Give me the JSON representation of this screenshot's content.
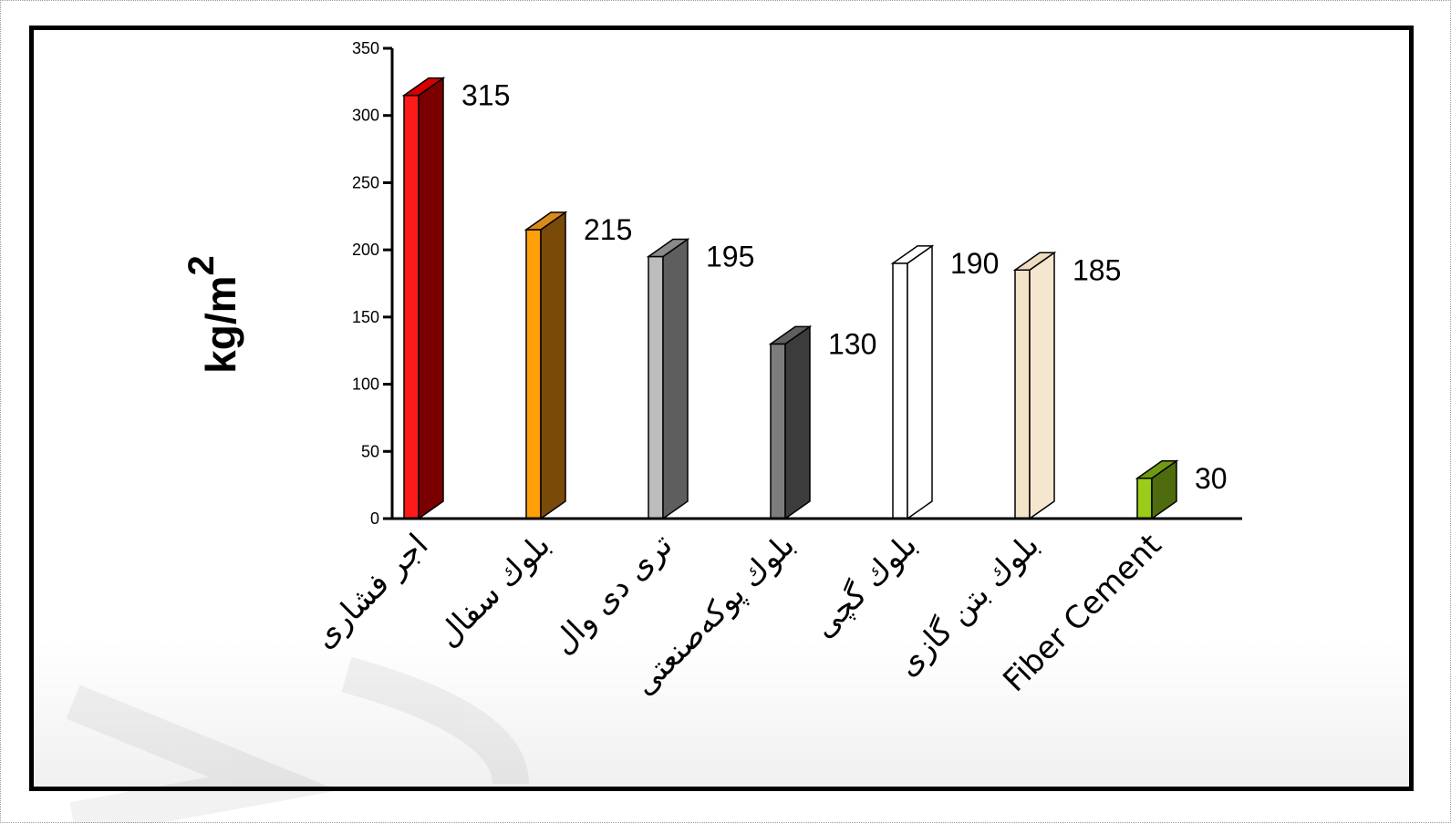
{
  "chart_data": {
    "type": "bar",
    "categories": [
      "اجر فشاری",
      "بلوك سفال",
      "تری دی وال",
      "بلوك پوکەصنعتی",
      "بلوك گچی",
      "بلوك بتن گازی",
      "Fiber Cement"
    ],
    "values": [
      315,
      215,
      195,
      130,
      190,
      185,
      30
    ],
    "data_labels": [
      "315",
      "215",
      "195",
      "130",
      "190",
      "185",
      "30"
    ],
    "ylabel": "kg/m",
    "ylabel_superscript": "2",
    "ylim": [
      0,
      350
    ],
    "yticks": [
      "0",
      "50",
      "100",
      "150",
      "200",
      "250",
      "300",
      "350"
    ],
    "grid": false,
    "bar_colors": [
      {
        "front": "#ff1a1a",
        "side": "#7a0000",
        "top": "#d60000"
      },
      {
        "front": "#ff9f0a",
        "side": "#7a4a08",
        "top": "#d88a1a"
      },
      {
        "front": "#bdbdbd",
        "side": "#5e5e5e",
        "top": "#8a8a8a"
      },
      {
        "front": "#7d7d7d",
        "side": "#3c3c3c",
        "top": "#5f5f5f"
      },
      {
        "front": "#ffffff",
        "side": "#ffffff",
        "top": "#ffffff"
      },
      {
        "front": "#f2e2c8",
        "side": "#f4e6cf",
        "top": "#efdcbf"
      },
      {
        "front": "#9acd1a",
        "side": "#4e6b0e",
        "top": "#6f9a12"
      }
    ]
  }
}
